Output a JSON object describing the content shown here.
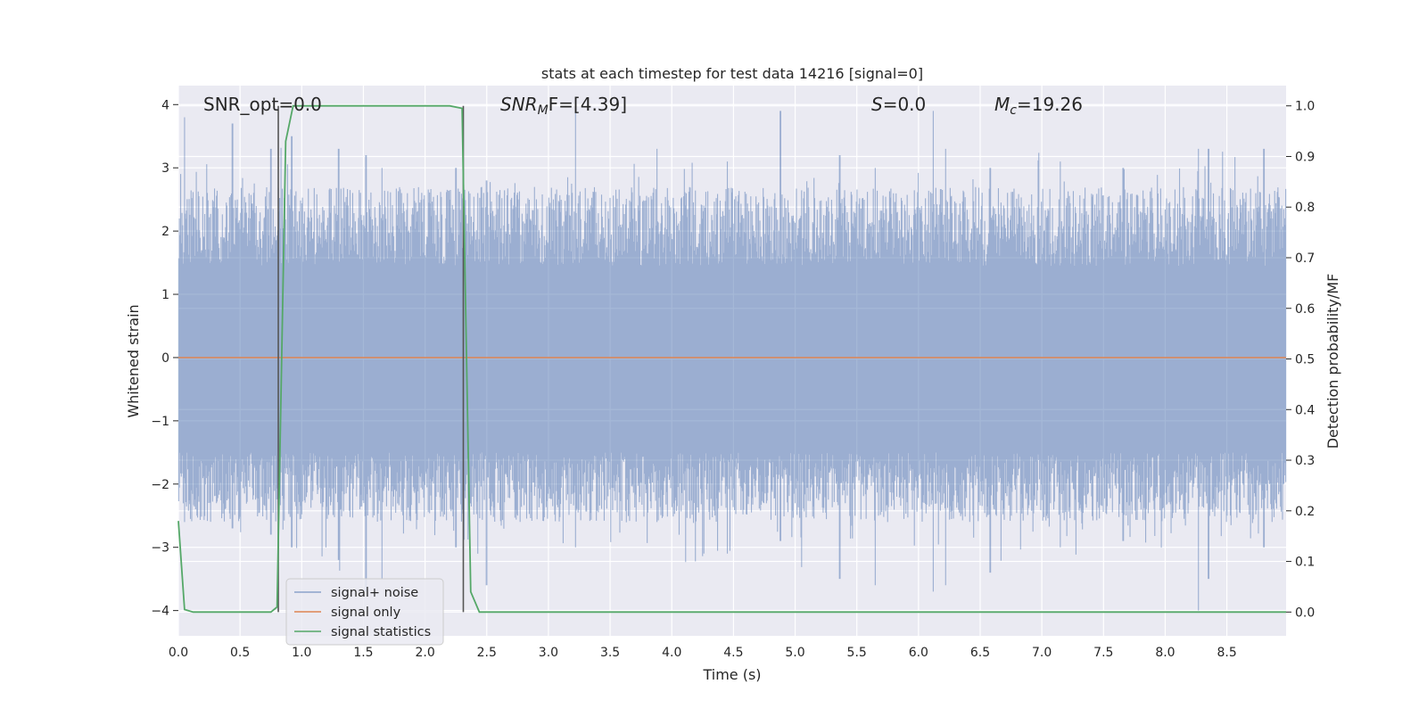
{
  "chart_data": {
    "type": "line",
    "title": "stats at each timestep for test data 14216 [signal=0]",
    "xlabel": "Time (s)",
    "ylabel_left": "Whitened strain",
    "ylabel_right": "Detection probability/MF",
    "xlim": [
      0.0,
      8.98
    ],
    "ylim_left": [
      -4.4,
      4.3
    ],
    "ylim_right": [
      -0.047,
      1.04
    ],
    "x_ticks": [
      "0.0",
      "0.5",
      "1.0",
      "1.5",
      "2.0",
      "2.5",
      "3.0",
      "3.5",
      "4.0",
      "4.5",
      "5.0",
      "5.5",
      "6.0",
      "6.5",
      "7.0",
      "7.5",
      "8.0",
      "8.5"
    ],
    "y_ticks_left": [
      "4",
      "3",
      "2",
      "1",
      "0",
      "−1",
      "−2",
      "−3",
      "−4"
    ],
    "y_ticks_right": [
      "1.0",
      "0.9",
      "0.8",
      "0.7",
      "0.6",
      "0.5",
      "0.4",
      "0.3",
      "0.2",
      "0.1",
      "0.0"
    ],
    "grid": true,
    "legend_position": "lower-left",
    "background_color": "#eaeaf2",
    "annotations": {
      "snr_opt": "SNR_opt=0.0",
      "snr_mf_base": "SNR",
      "snr_mf_sub": "M",
      "snr_mf_rest": "F=[4.39]",
      "s_base": "S",
      "s_rest": "=0.0",
      "mc_base": "M",
      "mc_sub": "c",
      "mc_rest": "=19.26"
    },
    "vertical_markers_x": [
      0.81,
      2.31
    ],
    "series": [
      {
        "name": "signal+ noise",
        "color": "#4c72b0",
        "alpha": 0.5,
        "axis": "left",
        "description": "whitened strain noise, amplitude about ±1.5 to ±4",
        "peaks_x": [
          0.05,
          0.44,
          0.75,
          0.92,
          1.3,
          1.52,
          1.65,
          2.25,
          2.5,
          3.22,
          3.88,
          4.45,
          4.88,
          5.36,
          5.65,
          6.12,
          6.22,
          6.58,
          7.15,
          7.66,
          8.27,
          8.35,
          8.8
        ],
        "peaks_y_max": [
          3.8,
          3.7,
          3.3,
          3.5,
          3.3,
          3.2,
          3.0,
          3.0,
          2.8,
          3.9,
          3.3,
          3.1,
          3.9,
          3.2,
          3.0,
          3.9,
          3.3,
          3.0,
          3.1,
          3.0,
          3.3,
          3.3,
          3.3
        ],
        "peaks_y_min": [
          -2.6,
          -2.7,
          -2.8,
          -3.0,
          -3.2,
          -3.7,
          -3.5,
          -3.0,
          -3.6,
          -3.0,
          -2.6,
          -3.1,
          -2.9,
          -3.5,
          -3.6,
          -3.7,
          -3.6,
          -3.4,
          -3.0,
          -2.9,
          -4.0,
          -3.5,
          -3.0
        ]
      },
      {
        "name": "signal only",
        "color": "#dd8452",
        "axis": "left",
        "x": [
          0.0,
          8.98
        ],
        "y": [
          0.0,
          0.0
        ]
      },
      {
        "name": "signal statistics",
        "color": "#55a868",
        "axis": "right",
        "x": [
          0.0,
          0.05,
          0.12,
          0.3,
          0.75,
          0.8,
          0.87,
          0.93,
          2.2,
          2.3,
          2.37,
          2.44,
          8.98
        ],
        "y": [
          0.18,
          0.005,
          0.0,
          0.0,
          0.0,
          0.01,
          0.93,
          1.0,
          1.0,
          0.995,
          0.04,
          0.0,
          0.0
        ]
      }
    ]
  }
}
